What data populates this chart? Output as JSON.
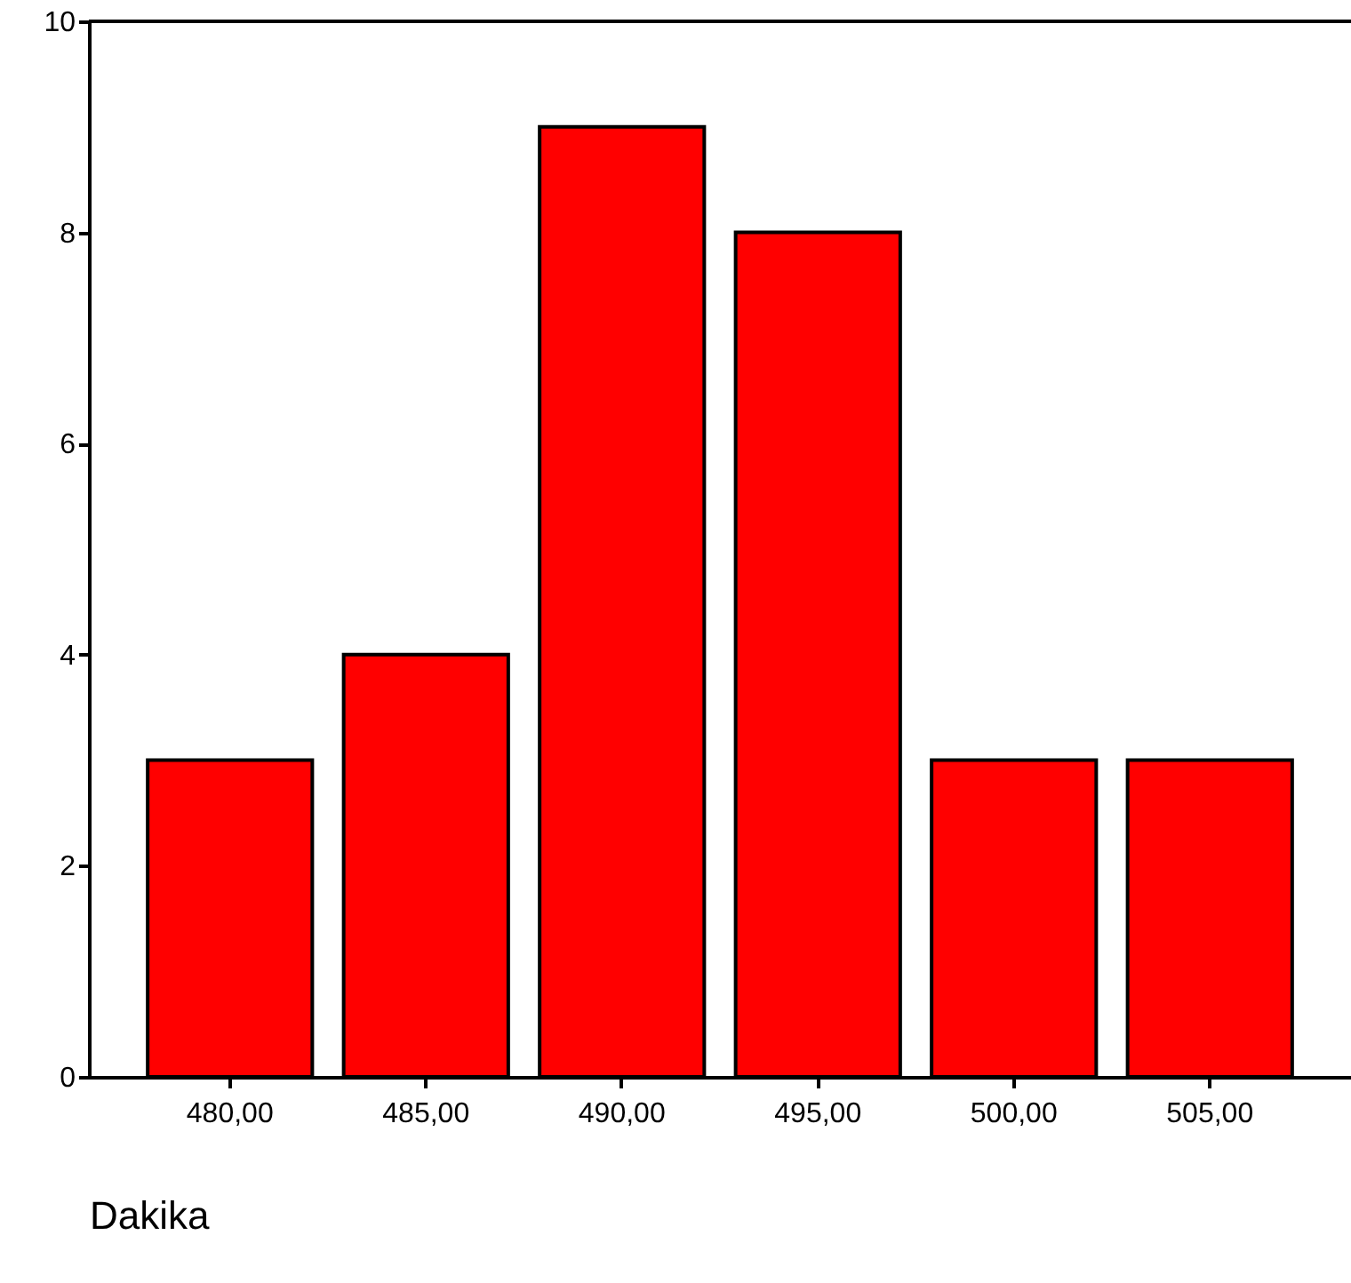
{
  "chart_data": {
    "type": "bar",
    "xlabel": "Dakika",
    "categories": [
      "480,00",
      "485,00",
      "490,00",
      "495,00",
      "500,00",
      "505,00"
    ],
    "values": [
      3,
      4,
      9,
      8,
      3,
      3
    ],
    "color": "#ff0000",
    "ylim": [
      0,
      10
    ],
    "yticks": [
      0,
      2,
      4,
      6,
      8,
      10
    ],
    "grid": false
  }
}
